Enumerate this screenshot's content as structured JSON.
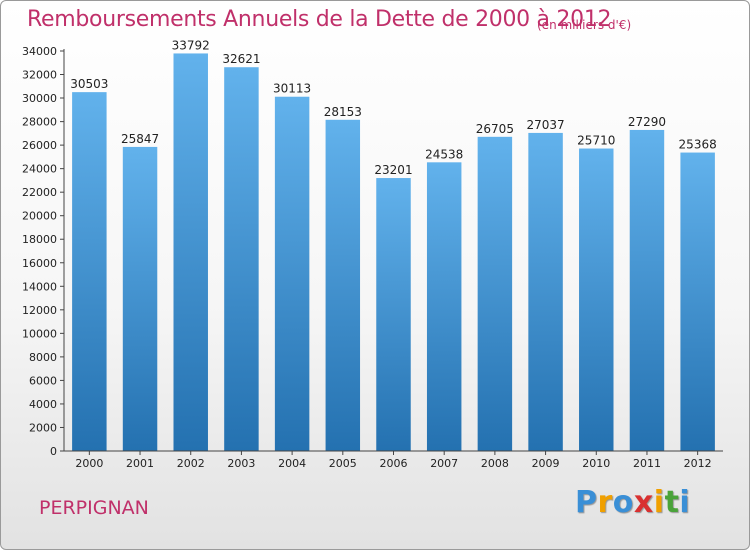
{
  "header": {
    "title": "Remboursements Annuels de la Dette de 2000 à 2012",
    "unit": "(en milliers d'€)"
  },
  "footer": {
    "city": "PERPIGNAN",
    "logo": [
      "P",
      "r",
      "o",
      "x",
      "i",
      "t",
      "i"
    ]
  },
  "colors": {
    "title": "#c0306a",
    "bar_top": "#62b2ec",
    "bar_bottom": "#2471b0",
    "logo": [
      "#3a8fd6",
      "#f0a000",
      "#3a8fd6",
      "#d93030",
      "#f0a000",
      "#4aa33a",
      "#3a8fd6"
    ]
  },
  "chart_data": {
    "type": "bar",
    "title": "Remboursements Annuels de la Dette de 2000 à 2012",
    "xlabel": "",
    "ylabel": "",
    "categories": [
      "2000",
      "2001",
      "2002",
      "2003",
      "2004",
      "2005",
      "2006",
      "2007",
      "2008",
      "2009",
      "2010",
      "2011",
      "2012"
    ],
    "values": [
      30503,
      25847,
      33792,
      32621,
      30113,
      28153,
      23201,
      24538,
      26705,
      27037,
      25710,
      27290,
      25368
    ],
    "ylim": [
      0,
      34000
    ],
    "yticks": [
      0,
      2000,
      4000,
      6000,
      8000,
      10000,
      12000,
      14000,
      16000,
      18000,
      20000,
      22000,
      24000,
      26000,
      28000,
      30000,
      32000,
      34000
    ],
    "grid": false,
    "legend": "none"
  }
}
